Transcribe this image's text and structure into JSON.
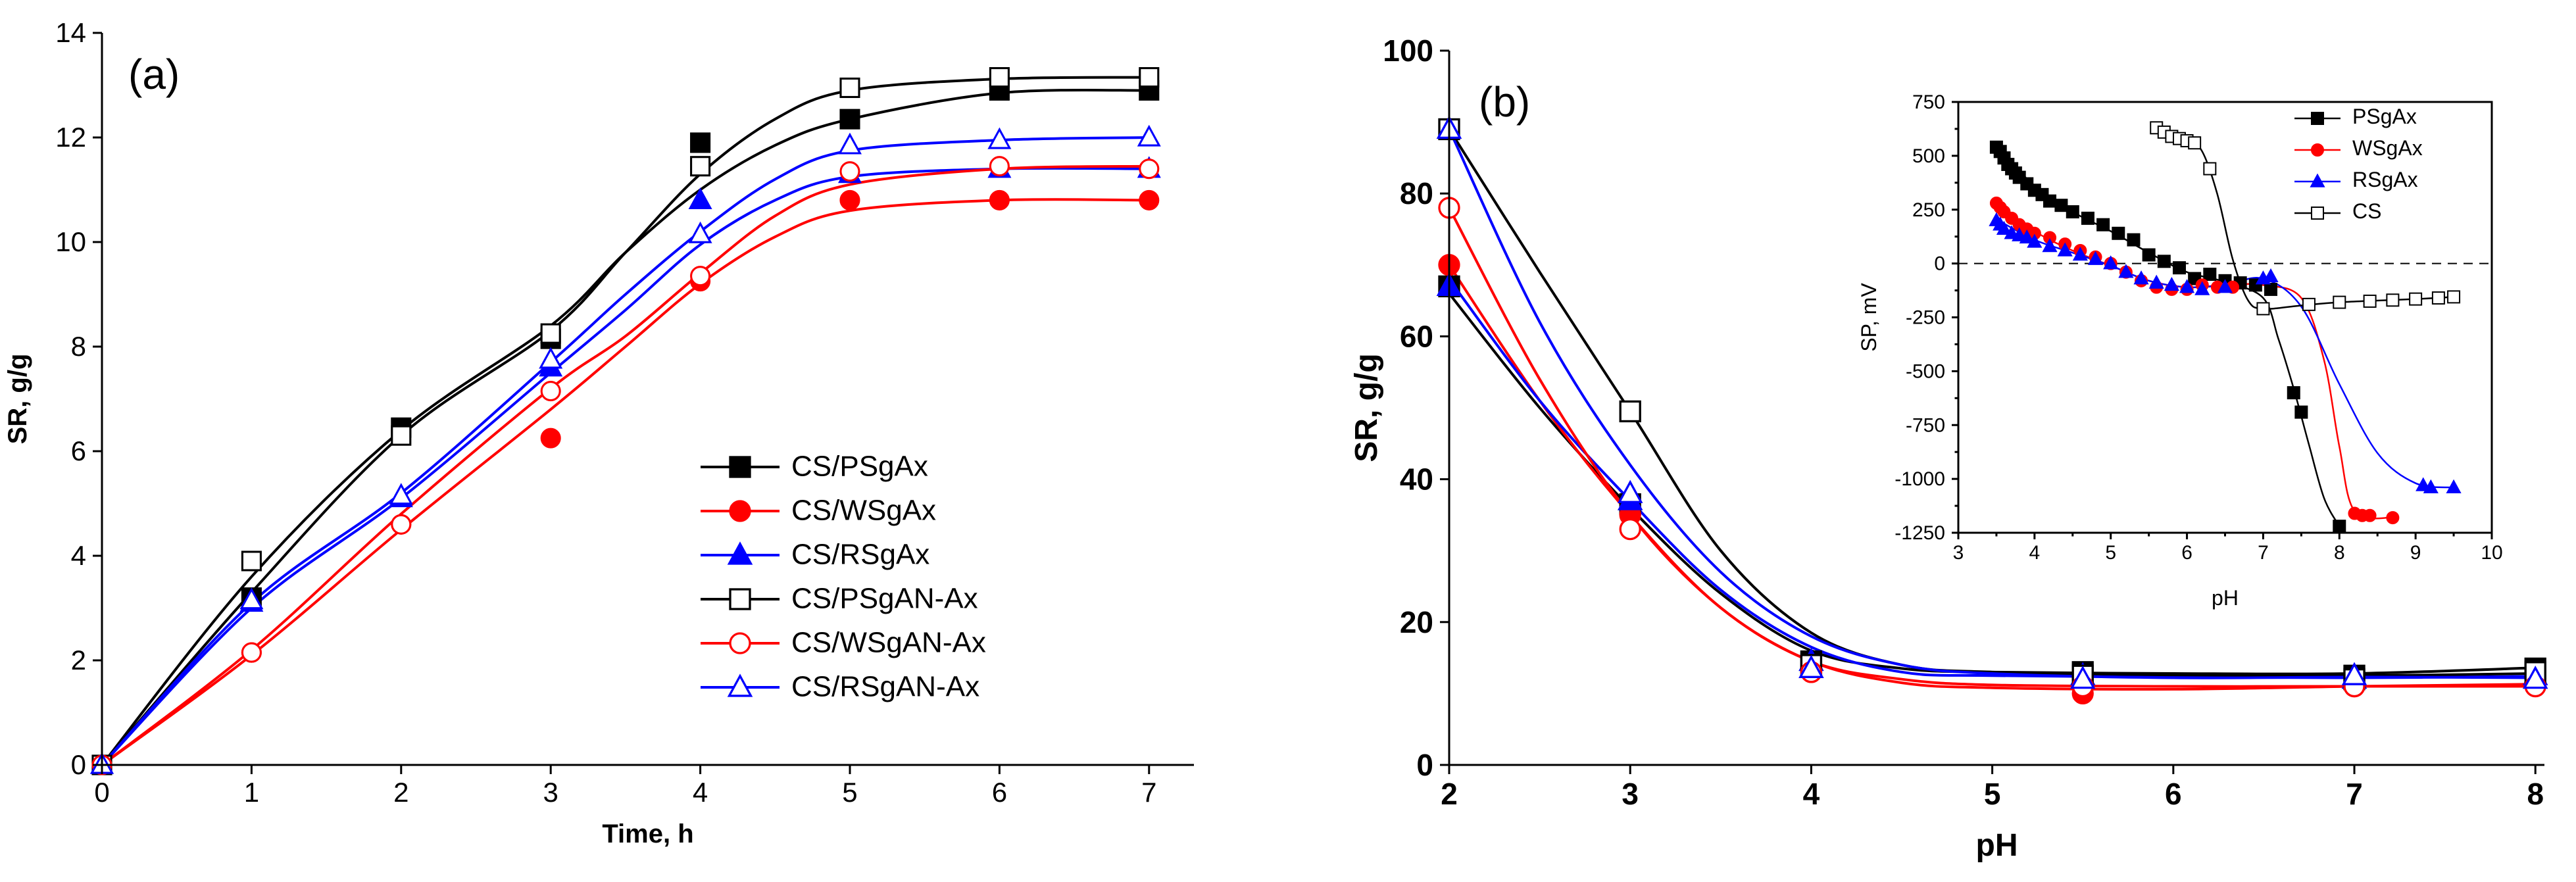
{
  "chart_data": [
    {
      "id": "a",
      "type": "line",
      "panel_label": "(a)",
      "xlabel": "Time, h",
      "ylabel": "SR, g/g",
      "xlim": [
        0,
        7.3
      ],
      "ylim": [
        0,
        14
      ],
      "xticks": [
        0,
        1,
        2,
        3,
        4,
        5,
        6,
        7
      ],
      "yticks": [
        0,
        2,
        4,
        6,
        8,
        10,
        12,
        14
      ],
      "legend_position": "bottom-right",
      "series": [
        {
          "name": "CS/PSgAx",
          "color": "#000000",
          "marker": "square",
          "filled": true,
          "x": [
            0,
            1,
            2,
            3,
            4,
            5,
            6,
            7
          ],
          "y": [
            0,
            3.2,
            6.45,
            8.15,
            11.9,
            12.35,
            12.9,
            12.9
          ],
          "fit_x": [
            0,
            1,
            2,
            3,
            3.5,
            4,
            4.5,
            5,
            6,
            7
          ],
          "fit_y": [
            0,
            3.6,
            6.4,
            8.4,
            9.8,
            11.0,
            11.85,
            12.35,
            12.85,
            12.9
          ]
        },
        {
          "name": "CS/WSgAx",
          "color": "#ff0000",
          "marker": "circle",
          "filled": true,
          "x": [
            0,
            1,
            2,
            3,
            4,
            5,
            6,
            7
          ],
          "y": [
            0,
            2.15,
            4.6,
            6.25,
            9.25,
            10.8,
            10.8,
            10.8
          ],
          "fit_x": [
            0,
            1,
            2,
            3,
            3.5,
            4,
            4.5,
            5,
            6,
            7
          ],
          "fit_y": [
            0,
            2.1,
            4.5,
            6.8,
            8.0,
            9.2,
            10.1,
            10.6,
            10.8,
            10.8
          ]
        },
        {
          "name": "CS/RSgAx",
          "color": "#0000ff",
          "marker": "triangle",
          "filled": true,
          "x": [
            0,
            1,
            2,
            3,
            4,
            5,
            6,
            7
          ],
          "y": [
            0,
            3.1,
            5.1,
            7.6,
            10.8,
            11.3,
            11.4,
            11.4
          ],
          "fit_x": [
            0,
            1,
            2,
            3,
            3.5,
            4,
            4.5,
            5,
            6,
            7
          ],
          "fit_y": [
            0,
            3.0,
            5.1,
            7.5,
            8.7,
            9.95,
            10.8,
            11.25,
            11.4,
            11.4
          ]
        },
        {
          "name": "CS/PSgAN-Ax",
          "color": "#000000",
          "marker": "square",
          "filled": false,
          "x": [
            0,
            1,
            2,
            3,
            4,
            5,
            6,
            7
          ],
          "y": [
            0,
            3.9,
            6.3,
            8.25,
            11.45,
            12.95,
            13.15,
            13.15
          ],
          "fit_x": [
            0,
            1,
            2,
            3,
            3.5,
            4,
            4.5,
            5,
            6,
            7
          ],
          "fit_y": [
            0,
            3.3,
            6.3,
            8.3,
            9.8,
            11.3,
            12.35,
            12.9,
            13.12,
            13.15
          ]
        },
        {
          "name": "CS/WSgAN-Ax",
          "color": "#ff0000",
          "marker": "circle",
          "filled": false,
          "x": [
            0,
            1,
            2,
            3,
            4,
            5,
            6,
            7
          ],
          "y": [
            0,
            2.15,
            4.6,
            7.15,
            9.35,
            11.35,
            11.45,
            11.4
          ],
          "fit_x": [
            0,
            1,
            2,
            3,
            3.5,
            4,
            4.5,
            5,
            6,
            7
          ],
          "fit_y": [
            0,
            2.2,
            4.8,
            7.2,
            8.2,
            9.4,
            10.5,
            11.1,
            11.4,
            11.45
          ]
        },
        {
          "name": "CS/RSgAN-Ax",
          "color": "#0000ff",
          "marker": "triangle",
          "filled": false,
          "x": [
            0,
            1,
            2,
            3,
            4,
            5,
            6,
            7
          ],
          "y": [
            0,
            3.15,
            5.15,
            7.75,
            10.15,
            11.85,
            11.95,
            12.0
          ],
          "fit_x": [
            0,
            1,
            2,
            3,
            3.5,
            4,
            4.5,
            5,
            6,
            7
          ],
          "fit_y": [
            0,
            3.1,
            5.2,
            7.7,
            9.0,
            10.2,
            11.2,
            11.75,
            11.95,
            12.0
          ]
        }
      ]
    },
    {
      "id": "b",
      "type": "line",
      "panel_label": "(b)",
      "xlabel": "pH",
      "ylabel": "SR, g/g",
      "xlim": [
        2,
        8.05
      ],
      "ylim": [
        0,
        100
      ],
      "xticks": [
        2,
        3,
        4,
        5,
        6,
        7,
        8
      ],
      "yticks": [
        0,
        20,
        40,
        60,
        80,
        100
      ],
      "series": [
        {
          "name": "CS/PSgAx",
          "color": "#000000",
          "marker": "square",
          "filled": true,
          "x": [
            2,
            3,
            4,
            5.5,
            7,
            8
          ],
          "y": [
            67,
            36.5,
            14.5,
            13,
            12.5,
            13.5
          ],
          "fit_x": [
            2,
            2.5,
            3,
            3.5,
            4,
            4.5,
            5,
            6,
            7,
            8
          ],
          "fit_y": [
            66,
            50,
            36,
            24,
            16,
            13.5,
            13,
            12.8,
            12.8,
            13.6
          ]
        },
        {
          "name": "CS/WSgAx",
          "color": "#ff0000",
          "marker": "circle",
          "filled": true,
          "x": [
            2,
            3,
            4,
            5.5,
            7,
            8
          ],
          "y": [
            70,
            35,
            13,
            10,
            11,
            11.5
          ],
          "fit_x": [
            2,
            2.5,
            3,
            3.5,
            4,
            4.5,
            5,
            6,
            7,
            8
          ],
          "fit_y": [
            70,
            51,
            35,
            22,
            14.5,
            11.5,
            10.8,
            10.6,
            11,
            11.3
          ]
        },
        {
          "name": "CS/RSgAx",
          "color": "#0000ff",
          "marker": "triangle",
          "filled": true,
          "x": [
            2,
            3,
            4,
            5.5,
            7,
            8
          ],
          "y": [
            67,
            37,
            14.5,
            12.5,
            12,
            12.5
          ],
          "fit_x": [
            2,
            2.5,
            3,
            3.5,
            4,
            4.5,
            5,
            6,
            7,
            8
          ],
          "fit_y": [
            68,
            51,
            37,
            24.5,
            16.5,
            13,
            12.5,
            12.3,
            12.2,
            12.4
          ]
        },
        {
          "name": "CS/PSgAN-Ax",
          "color": "#000000",
          "marker": "square",
          "filled": false,
          "x": [
            2,
            3,
            4,
            5.5,
            7,
            8
          ],
          "y": [
            89,
            49.5,
            14,
            12.5,
            12,
            13
          ],
          "fit_x": [
            2,
            2.5,
            3,
            3.5,
            4,
            4.5,
            5,
            6,
            7,
            8
          ],
          "fit_y": [
            89,
            69,
            49.5,
            30,
            18.5,
            14,
            13,
            12.6,
            12.5,
            12.8
          ]
        },
        {
          "name": "CS/WSgAN-Ax",
          "color": "#ff0000",
          "marker": "circle",
          "filled": false,
          "x": [
            2,
            3,
            4,
            5.5,
            7,
            8
          ],
          "y": [
            78,
            33,
            13,
            11,
            11,
            11
          ],
          "fit_x": [
            2,
            2.5,
            3,
            3.5,
            4,
            4.5,
            5,
            6,
            7,
            8
          ],
          "fit_y": [
            78,
            54,
            35,
            22,
            14.5,
            12,
            11.2,
            11,
            11,
            11
          ]
        },
        {
          "name": "CS/RSgAN-Ax",
          "color": "#0000ff",
          "marker": "triangle",
          "filled": false,
          "x": [
            2,
            3,
            4,
            5.5,
            7,
            8
          ],
          "y": [
            89,
            38,
            13.5,
            12,
            12.5,
            12
          ],
          "fit_x": [
            2,
            2.5,
            3,
            3.5,
            4,
            4.5,
            5,
            6,
            7,
            8
          ],
          "fit_y": [
            89,
            62,
            42,
            27,
            18,
            14,
            12.8,
            12.2,
            12.3,
            12.2
          ]
        }
      ]
    },
    {
      "id": "b-inset",
      "type": "line",
      "xlabel": "pH",
      "ylabel": "SP, mV",
      "xlim": [
        3,
        10
      ],
      "ylim": [
        -1250,
        750
      ],
      "xticks": [
        3,
        4,
        5,
        6,
        7,
        8,
        9,
        10
      ],
      "yticks": [
        -1250,
        -1000,
        -750,
        -500,
        -250,
        0,
        250,
        500,
        750
      ],
      "reference_line_y": 0,
      "legend_position": "top-right",
      "series": [
        {
          "name": "PSgAx",
          "color": "#000000",
          "marker": "square",
          "filled": true,
          "x": [
            3.5,
            3.55,
            3.6,
            3.65,
            3.7,
            3.75,
            3.8,
            3.9,
            4.0,
            4.1,
            4.2,
            4.35,
            4.5,
            4.7,
            4.9,
            5.1,
            5.3,
            5.5,
            5.7,
            5.9,
            6.1,
            6.3,
            6.5,
            6.7,
            6.9,
            7.1,
            7.4,
            7.5,
            8.0
          ],
          "y": [
            540,
            520,
            490,
            460,
            440,
            420,
            400,
            370,
            340,
            320,
            290,
            270,
            240,
            210,
            180,
            140,
            110,
            40,
            10,
            -20,
            -70,
            -50,
            -80,
            -90,
            -100,
            -120,
            -600,
            -690,
            -1220
          ],
          "fit_x": [
            3.5,
            4.0,
            4.5,
            5.0,
            5.5,
            6.0,
            6.5,
            7.0,
            7.2,
            7.4,
            7.6,
            7.8,
            8.0
          ],
          "fit_y": [
            545,
            360,
            240,
            150,
            50,
            -40,
            -85,
            -160,
            -350,
            -580,
            -840,
            -1090,
            -1220
          ]
        },
        {
          "name": "WSgAx",
          "color": "#ff0000",
          "marker": "circle",
          "filled": true,
          "x": [
            3.5,
            3.55,
            3.6,
            3.7,
            3.8,
            3.9,
            4.0,
            4.2,
            4.4,
            4.6,
            4.8,
            5.0,
            5.2,
            5.4,
            5.6,
            5.8,
            6.0,
            6.2,
            6.4,
            6.6,
            8.2,
            8.3,
            8.4,
            8.7
          ],
          "y": [
            280,
            260,
            240,
            210,
            180,
            160,
            140,
            120,
            90,
            60,
            30,
            0,
            -40,
            -80,
            -110,
            -120,
            -120,
            -100,
            -110,
            -110,
            -1160,
            -1170,
            -1170,
            -1180
          ],
          "fit_x": [
            3.5,
            4.0,
            4.5,
            5.0,
            5.5,
            6.0,
            6.5,
            7.0,
            7.5,
            7.8,
            8.0,
            8.2,
            8.7
          ],
          "fit_y": [
            285,
            150,
            60,
            -10,
            -80,
            -110,
            -100,
            -100,
            -160,
            -450,
            -850,
            -1150,
            -1180
          ]
        },
        {
          "name": "RSgAx",
          "color": "#0000ff",
          "marker": "triangle",
          "filled": true,
          "x": [
            3.5,
            3.55,
            3.6,
            3.7,
            3.8,
            3.9,
            4.0,
            4.2,
            4.4,
            4.6,
            4.8,
            5.0,
            5.2,
            5.4,
            5.6,
            5.8,
            6.0,
            6.2,
            6.5,
            7.0,
            7.1,
            9.1,
            9.2,
            9.5
          ],
          "y": [
            200,
            180,
            160,
            140,
            130,
            120,
            100,
            80,
            60,
            40,
            20,
            0,
            -40,
            -70,
            -90,
            -100,
            -110,
            -120,
            -110,
            -70,
            -60,
            -1030,
            -1040,
            -1040
          ],
          "fit_x": [
            3.5,
            4.0,
            4.5,
            5.0,
            5.5,
            6.0,
            6.5,
            7.0,
            7.5,
            8.0,
            8.5,
            9.0,
            9.5
          ],
          "fit_y": [
            205,
            110,
            50,
            -10,
            -80,
            -110,
            -100,
            -70,
            -200,
            -560,
            -880,
            -1020,
            -1040
          ]
        },
        {
          "name": "CS",
          "color": "#000000",
          "marker": "square",
          "filled": false,
          "x": [
            5.6,
            5.7,
            5.8,
            5.9,
            6.0,
            6.1,
            6.3,
            7.0,
            7.6,
            8.0,
            8.4,
            8.7,
            9.0,
            9.3,
            9.5
          ],
          "y": [
            630,
            610,
            590,
            580,
            570,
            560,
            440,
            -210,
            -190,
            -180,
            -175,
            -170,
            -165,
            -160,
            -155
          ],
          "fit_x": [
            5.6,
            6.0,
            6.2,
            6.4,
            6.6,
            6.8,
            7.0,
            7.5,
            8.0,
            9.0,
            9.5
          ],
          "fit_y": [
            630,
            575,
            520,
            320,
            20,
            -170,
            -210,
            -195,
            -180,
            -165,
            -155
          ]
        }
      ]
    }
  ]
}
